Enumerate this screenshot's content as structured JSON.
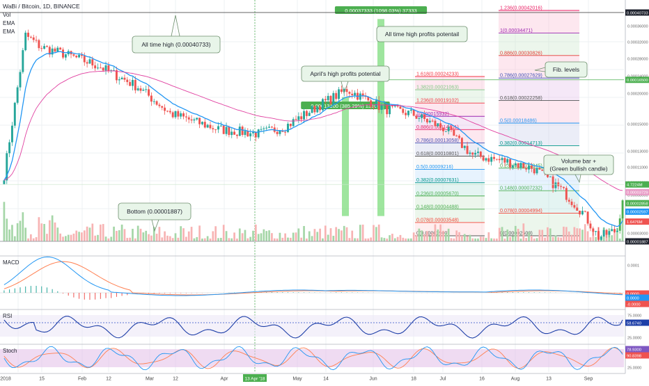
{
  "header": {
    "symbol": "WaBi / Bitcoin, 1D, BINANCE",
    "indicators": [
      "Vol",
      "EMA",
      "EMA"
    ]
  },
  "chart_data": {
    "type": "candlestick",
    "title": "WaBi / Bitcoin, 1D, BINANCE",
    "y_scale": "log",
    "price_axis_labels": [
      "0.00040733",
      "0.00036000",
      "0.00032000",
      "0.00028000",
      "0.00024000",
      "0.00020000",
      "0.00016500",
      "0.00015000",
      "0.00013000",
      "0.00011000",
      "0.00009000",
      "0.00008000",
      "0.00006000",
      "0.00005000",
      "0.00004000",
      "0.00003000",
      "0.00002597",
      "0.00001887"
    ],
    "price_tags": [
      {
        "text": "0.00040733",
        "price": 0.00040733,
        "color": "#1e222d"
      },
      {
        "text": "0.00016500",
        "price": 0.000165,
        "color": "#4caf50"
      },
      {
        "text": "4.7224M",
        "price": 4.05e-05,
        "color": "#4caf50"
      },
      {
        "text": "0.00003729",
        "price": 3.65e-05,
        "color": "#e89cc6"
      },
      {
        "text": "0.00002858",
        "price": 3.15e-05,
        "color": "#4caf50"
      },
      {
        "text": "0.00002597",
        "price": 2.81e-05,
        "color": "#2196f3"
      },
      {
        "text": "1.6476M",
        "price": 2.46e-05,
        "color": "#ef5350"
      },
      {
        "text": "0.00001887",
        "price": 1.887e-05,
        "color": "#1e222d"
      }
    ],
    "time_axis_labels": [
      "2018",
      "15",
      "Feb",
      "12",
      "Mar",
      "12",
      "Apr",
      "13 Apr '18",
      "May",
      "14",
      "Jun",
      "18",
      "Jul",
      "16",
      "Aug",
      "13",
      "Sep"
    ],
    "key_prices": {
      "all_time_high": 0.00040733,
      "bottom": 1.887e-05,
      "last": 2.597e-05,
      "level_165": 0.000165
    },
    "targets": [
      {
        "label": "0.00013100 (385.29%) 13100",
        "from": 2.7e-05,
        "to": 0.000131,
        "percent": 385.29
      },
      {
        "label": "0.00037333 (1098.03%) 37333",
        "from": 3.4e-05,
        "to": 0.00037333,
        "percent": 1098.03
      }
    ],
    "fib_sets": [
      {
        "levels": [
          {
            "text": "1.618(0.00024233)",
            "color": "#f23645"
          },
          {
            "text": "1.382(0.00021063)",
            "color": "#81c784"
          },
          {
            "text": "1.236(0.00019102)",
            "color": "#f23645"
          },
          {
            "text": "1(0.00015932)",
            "color": "#9c27b0"
          },
          {
            "text": "0.886(0.00014401)",
            "color": "#e91e63"
          },
          {
            "text": "0.786(0.00013058)",
            "color": "#3f51b5"
          },
          {
            "text": "0.618(0.00010801)",
            "color": "#555555"
          },
          {
            "text": "0.5(0.00009216)",
            "color": "#2196f3"
          },
          {
            "text": "0.382(0.00007631)",
            "color": "#009688"
          },
          {
            "text": "0.236(0.00005670)",
            "color": "#4caf50"
          },
          {
            "text": "0.148(0.00004488)",
            "color": "#4caf50"
          },
          {
            "text": "0.078(0.00003548)",
            "color": "#f44336"
          },
          {
            "text": "0(0.00002500)",
            "color": "#555555"
          }
        ]
      },
      {
        "levels": [
          {
            "text": "1.236(0.00042016)",
            "color": "#e91e63"
          },
          {
            "text": "1(0.00034471)",
            "color": "#9c27b0"
          },
          {
            "text": "0.886(0.00030826)",
            "color": "#e53935"
          },
          {
            "text": "0.786(0.00027629)",
            "color": "#3f51b5"
          },
          {
            "text": "0.618(0.00022258)",
            "color": "#555555"
          },
          {
            "text": "0.5(0.00018486)",
            "color": "#2196f3"
          },
          {
            "text": "0.382(0.00014713)",
            "color": "#009688"
          },
          {
            "text": "0.236(0.00010045)",
            "color": "#4caf50"
          },
          {
            "text": "0.148(0.00007232)",
            "color": "#4caf50"
          },
          {
            "text": "0.078(0.00004994)",
            "color": "#f44336"
          },
          {
            "text": "0(0.00002500)",
            "color": "#555555"
          }
        ]
      }
    ],
    "callouts": {
      "ath": "All time high (0.00040733)",
      "ath_profit": "All time high profits potentail",
      "april": "April's high profits potential",
      "fib": "Fib. levels",
      "bottom": "Bottom (0.00001887)",
      "volume_line1": "Volume bar +",
      "volume_line2": "(Green bullish candle)"
    },
    "macd": {
      "label": "MACD",
      "axis": [
        "0.0001",
        "0.0000"
      ],
      "tags": [
        "0.0000",
        "0.0000",
        "-0.0000"
      ]
    },
    "rsi": {
      "label": "RSI",
      "axis": [
        "75.0000",
        "50.0000",
        "25.0000"
      ],
      "tags": [
        "58.6740"
      ]
    },
    "stoch": {
      "label": "Stoch",
      "axis": [
        "75.0000",
        "25.0000"
      ],
      "tags": [
        "78.9300",
        "90.8398"
      ]
    }
  },
  "colors": {
    "up": "#26a69a",
    "up_bright": "#4caf50",
    "down": "#ef5350",
    "ema_fast": "#2196f3",
    "ema_slow": "#e040a0",
    "macd": "#2196f3",
    "signal": "#ff7f50",
    "rsi": "#1e3fa8",
    "band": "#7e57c2"
  }
}
